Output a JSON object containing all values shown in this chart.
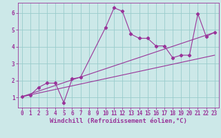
{
  "xlabel": "Windchill (Refroidissement éolien,°C)",
  "bg_color": "#cce8e8",
  "line_color": "#993399",
  "grid_color": "#99cccc",
  "xlim": [
    -0.5,
    23.5
  ],
  "ylim": [
    0.4,
    6.6
  ],
  "xticks": [
    0,
    1,
    2,
    3,
    4,
    5,
    6,
    7,
    8,
    9,
    10,
    11,
    12,
    13,
    14,
    15,
    16,
    17,
    18,
    19,
    20,
    21,
    22,
    23
  ],
  "yticks": [
    1,
    2,
    3,
    4,
    5,
    6
  ],
  "series1_x": [
    0,
    1,
    2,
    3,
    4,
    5,
    6,
    7,
    10,
    11,
    12,
    13,
    14,
    15,
    16,
    17,
    18,
    19,
    20,
    21,
    22,
    23
  ],
  "series1_y": [
    1.05,
    1.15,
    1.6,
    1.85,
    1.85,
    0.7,
    2.1,
    2.2,
    5.15,
    6.3,
    6.1,
    4.75,
    4.5,
    4.5,
    4.05,
    4.05,
    3.35,
    3.5,
    3.5,
    5.95,
    4.6,
    4.85
  ],
  "series2_x": [
    0,
    23
  ],
  "series2_y": [
    1.05,
    3.5
  ],
  "series3_x": [
    0,
    23
  ],
  "series3_y": [
    1.05,
    4.85
  ],
  "tick_fontsize": 5.5,
  "label_fontsize": 6.5
}
